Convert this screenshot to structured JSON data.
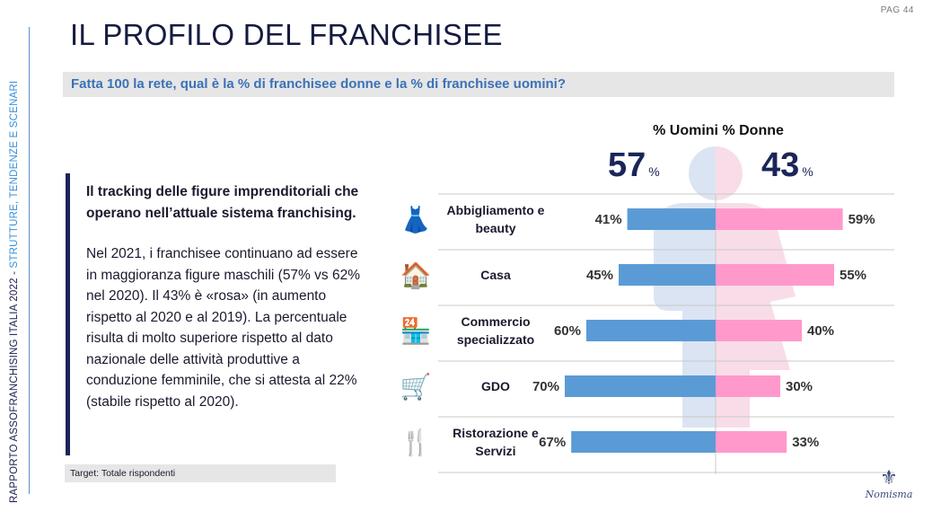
{
  "page": "PAG 44",
  "title": "IL PROFILO DEL FRANCHISEE",
  "side_label": {
    "main": "RAPPORTO ASSOFRANCHISING ITALIA 2022 - ",
    "accent": "STRUTTURE, TENDENZE E SCENARI"
  },
  "question": "Fatta 100 la rete, qual è la % di franchisee donne e la % di franchisee uomini?",
  "quote": {
    "lead": "Il tracking delle figure imprenditoriali che operano nell’attuale sistema franchising.",
    "body": "Nel 2021, i franchisee continuano ad essere in maggioranza figure maschili (57% vs 62% nel 2020). Il 43% è «rosa» (in aumento rispetto al 2020 e al 2019). La percentuale risulta di molto superiore rispetto al dato nazionale delle attività produttive a conduzione femminile, che si attesta al 22% (stabile rispetto al 2020)."
  },
  "target": "Target: Totale rispondenti",
  "logo": "Nomisma",
  "colors": {
    "men": "#5b9bd5",
    "women": "#ff99cc",
    "men_silhouette": "#dbe4f3",
    "women_silhouette": "#f8dde8",
    "navy": "#1b2558"
  },
  "icons": [
    "dress-scissors-icon",
    "house-icon",
    "storefront-icon",
    "shopping-cart-icon",
    "fork-knife-icon"
  ],
  "chart_data": {
    "type": "bar",
    "orientation": "diverging-horizontal",
    "header": "% Uomini % Donne",
    "totals": {
      "men": "57",
      "women": "43",
      "unit": "%"
    },
    "categories": [
      "Abbigliamento e beauty",
      "Casa",
      "Commercio specializzato",
      "GDO",
      "Ristorazione e Servizi"
    ],
    "series": [
      {
        "name": "% Uomini",
        "values": [
          41,
          45,
          60,
          70,
          67
        ],
        "labels": [
          "41%",
          "45%",
          "60%",
          "70%",
          "67%"
        ]
      },
      {
        "name": "% Donne",
        "values": [
          59,
          55,
          40,
          30,
          33
        ],
        "labels": [
          "59%",
          "55%",
          "40%",
          "30%",
          "33%"
        ]
      }
    ],
    "xlim": [
      0,
      100
    ]
  }
}
